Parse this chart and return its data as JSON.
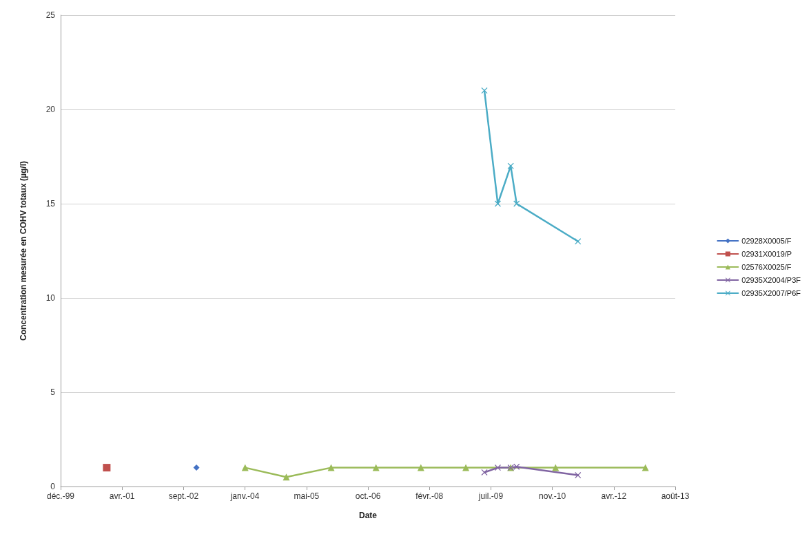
{
  "chart_data": {
    "type": "line",
    "xlabel": "Date",
    "ylabel": "Concentration mesurée en COHV totaux (µg/l)",
    "xlim": [
      "1999-12-06",
      "2013-08-15"
    ],
    "xticks": [
      {
        "value": "1999-12-06",
        "label": "déc.-99"
      },
      {
        "value": "2001-04-19",
        "label": "avr.-01"
      },
      {
        "value": "2002-09-01",
        "label": "sept.-02"
      },
      {
        "value": "2004-01-14",
        "label": "janv.-04"
      },
      {
        "value": "2005-05-29",
        "label": "mai-05"
      },
      {
        "value": "2006-10-11",
        "label": "oct.-06"
      },
      {
        "value": "2008-02-23",
        "label": "févr.-08"
      },
      {
        "value": "2009-07-07",
        "label": "juil.-09"
      },
      {
        "value": "2010-11-19",
        "label": "nov.-10"
      },
      {
        "value": "2012-04-02",
        "label": "avr.-12"
      },
      {
        "value": "2013-08-15",
        "label": "août-13"
      }
    ],
    "ylim": [
      0,
      25
    ],
    "yticks": [
      0,
      5,
      10,
      15,
      20,
      25
    ],
    "grid": "y",
    "legend": "right",
    "line_style": "solid",
    "series": [
      {
        "name": "02928X0005/F",
        "color": "#4472c4",
        "marker": "diamond",
        "x": [
          "2002-12-15"
        ],
        "values": [
          1
        ]
      },
      {
        "name": "02931X0019/P",
        "color": "#c0504d",
        "marker": "square",
        "x": [
          "2000-12-15"
        ],
        "values": [
          1
        ]
      },
      {
        "name": "02576X0025/F",
        "color": "#9bbb59",
        "marker": "triangle",
        "x": [
          "2004-01-15",
          "2004-12-15",
          "2005-12-15",
          "2006-12-15",
          "2007-12-15",
          "2008-12-15",
          "2009-12-15",
          "2010-12-15",
          "2012-12-15"
        ],
        "values": [
          1,
          0.5,
          1,
          1,
          1,
          1,
          1,
          1,
          1
        ]
      },
      {
        "name": "02935X2004/P3F",
        "color": "#8064a2",
        "marker": "cross",
        "x": [
          "2009-05-15",
          "2009-09-01",
          "2009-12-15",
          "2010-02-01",
          "2011-06-15"
        ],
        "values": [
          0.75,
          1,
          1,
          1.05,
          0.6
        ]
      },
      {
        "name": "02935X2007/P6F",
        "color": "#4bacc6",
        "marker": "cross",
        "x": [
          "2009-05-15",
          "2009-09-01",
          "2009-12-15",
          "2010-02-01",
          "2011-06-15"
        ],
        "values": [
          21,
          15,
          17,
          15,
          13
        ]
      }
    ]
  }
}
